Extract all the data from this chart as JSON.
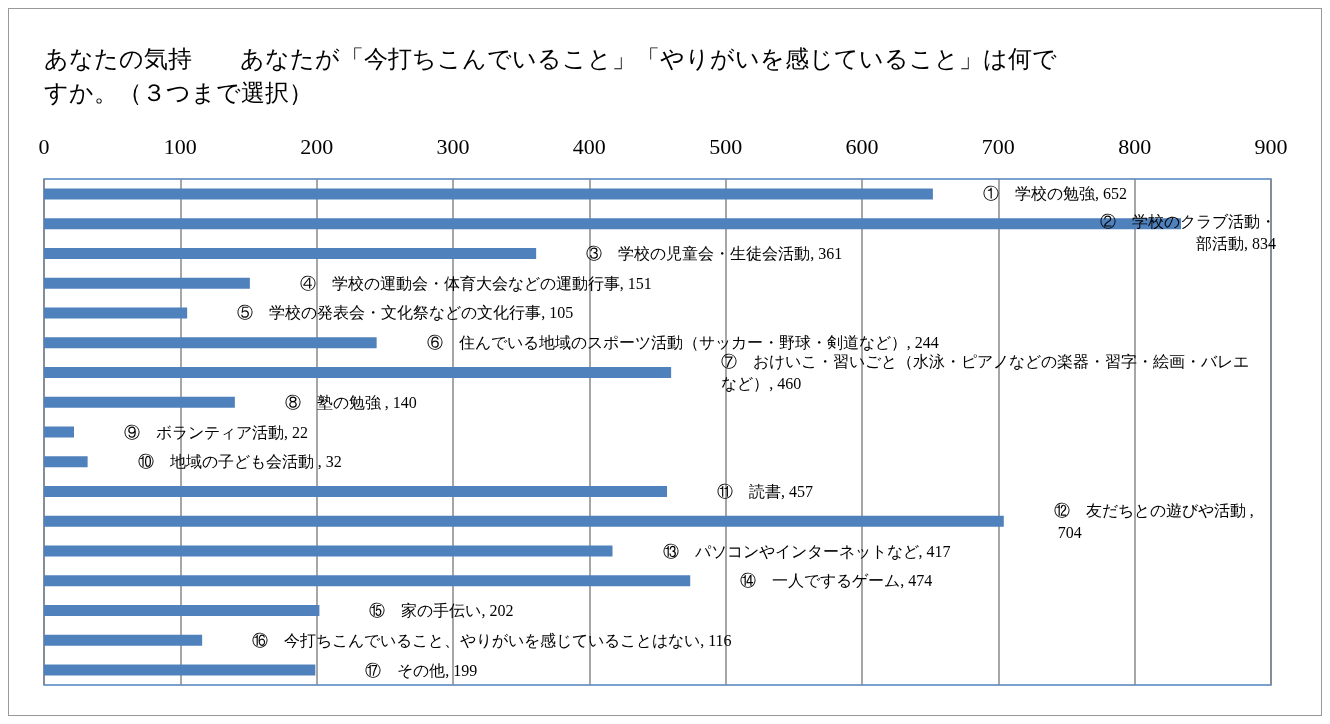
{
  "chart_data": {
    "type": "bar",
    "orientation": "horizontal",
    "title": "あなたの気持　　あなたが「今打ちこんでいること」「やりがいを感じていること」は何ですか。（３つまで選択）",
    "categories": [
      null,
      null,
      null,
      null,
      null,
      null,
      null,
      null,
      null,
      null,
      null,
      null,
      null,
      null,
      null,
      null,
      null
    ],
    "values": [
      652,
      834,
      361,
      151,
      105,
      244,
      460,
      140,
      22,
      32,
      457,
      704,
      417,
      474,
      202,
      116,
      199
    ],
    "value_labels": [
      "①　学校の勉強, 652",
      "②　学校のクラブ活動・部活動, 834",
      "③　学校の児童会・生徒会活動, 361",
      "④　学校の運動会・体育大会などの運動行事, 151",
      "⑤　学校の発表会・文化祭などの文化行事, 105",
      "⑥　住んでいる地域のスポーツ活動（サッカー・野球・剣道など）, 244",
      "⑦　おけいこ・習いごと（水泳・ピアノなどの楽器・習字・絵画・バレエなど）, 460",
      "⑧　塾の勉強 , 140",
      "⑨　ボランティア活動, 22",
      "⑩　地域の子ども会活動 , 32",
      "⑪　読書, 457",
      "⑫　友だちとの遊びや活動 , 704",
      "⑬　パソコンやインターネットなど, 417",
      "⑭　一人でするゲーム, 474",
      "⑮　家の手伝い, 202",
      "⑯　今打ちこんでいること、やりがいを感じていることはない, 116",
      "⑰　その他, 199"
    ],
    "color": "#4f81bd",
    "xlim": [
      0,
      900
    ],
    "xticks": [
      0,
      100,
      200,
      300,
      400,
      500,
      600,
      700,
      800,
      900
    ],
    "grid": "x",
    "tick_labels": "x"
  }
}
